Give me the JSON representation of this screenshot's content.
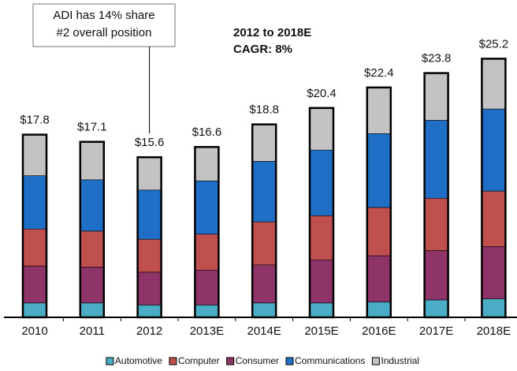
{
  "chart_data": {
    "type": "stacked-bar",
    "categories": [
      "2010",
      "2011",
      "2012",
      "2013E",
      "2014E",
      "2015E",
      "2016E",
      "2017E",
      "2018E"
    ],
    "series": [
      {
        "name": "Automotive",
        "color": "#4bacc6",
        "values": [
          1.4,
          1.4,
          1.2,
          1.2,
          1.4,
          1.4,
          1.5,
          1.7,
          1.8
        ]
      },
      {
        "name": "Consumer",
        "color": "#8e3468",
        "values": [
          3.6,
          3.5,
          3.2,
          3.4,
          3.7,
          4.2,
          4.5,
          4.8,
          5.1
        ]
      },
      {
        "name": "Computer",
        "color": "#c0504d",
        "values": [
          3.6,
          3.5,
          3.2,
          3.5,
          4.2,
          4.3,
          4.7,
          5.1,
          5.4
        ]
      },
      {
        "name": "Communications",
        "color": "#1f6fc6",
        "values": [
          5.2,
          5.0,
          4.8,
          5.2,
          5.9,
          6.4,
          7.2,
          7.6,
          8.0
        ]
      },
      {
        "name": "Industrial",
        "color": "#c3c3c3",
        "values": [
          4.0,
          3.7,
          3.2,
          3.3,
          3.6,
          4.1,
          4.5,
          4.6,
          4.9
        ]
      }
    ],
    "legend_order": [
      0,
      2,
      1,
      3,
      4
    ],
    "totals": [
      17.8,
      17.1,
      15.6,
      16.6,
      18.8,
      20.4,
      22.4,
      23.8,
      25.2
    ],
    "totals_labels": [
      "$17.8",
      "$17.1",
      "$15.6",
      "$16.6",
      "$18.8",
      "$20.4",
      "$22.4",
      "$23.8",
      "$25.2"
    ],
    "annotation_box": {
      "lines": [
        "ADI has 14% share",
        "#2 overall position"
      ],
      "category_index": 2
    },
    "annotation_cagr": {
      "lines": [
        "2012 to 2018E",
        "CAGR: 8%"
      ]
    }
  }
}
